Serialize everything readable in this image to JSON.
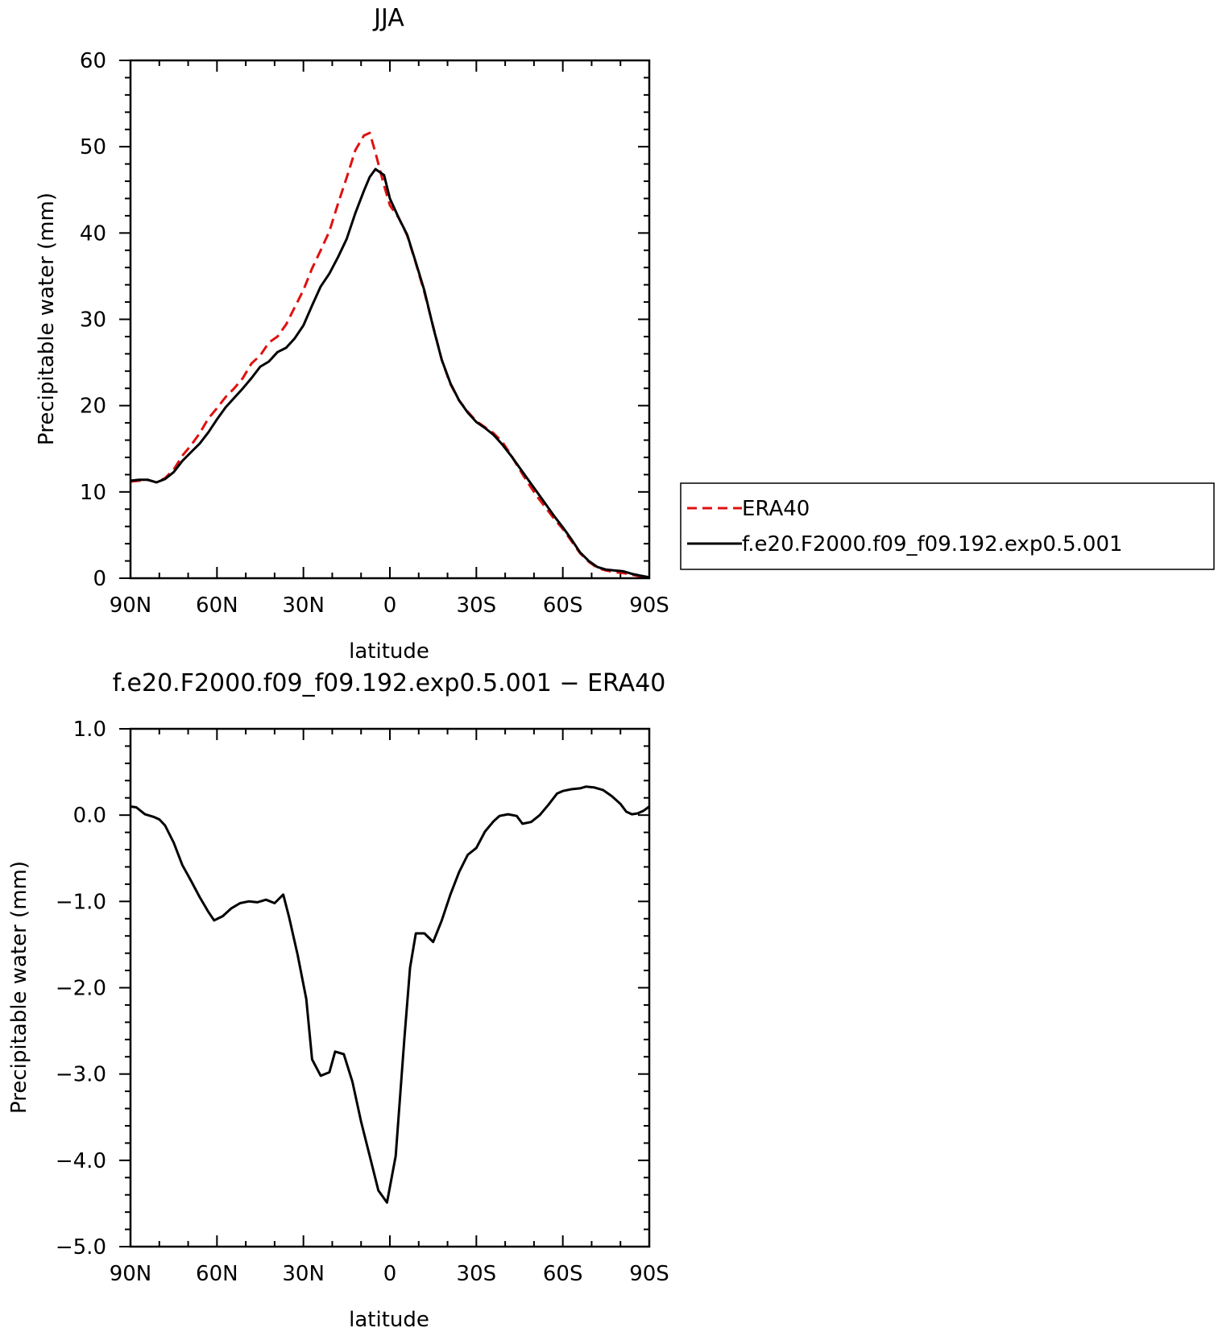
{
  "chart_data": [
    {
      "type": "line",
      "title": "JJA",
      "xlabel": "latitude",
      "ylabel": "Precipitable water (mm)",
      "xlim": [
        90,
        -90
      ],
      "ylim": [
        0,
        60
      ],
      "x_ticks": [
        {
          "value": 90,
          "label": "90N"
        },
        {
          "value": 60,
          "label": "60N"
        },
        {
          "value": 30,
          "label": "30N"
        },
        {
          "value": 0,
          "label": "0"
        },
        {
          "value": -30,
          "label": "30S"
        },
        {
          "value": -60,
          "label": "60S"
        },
        {
          "value": -90,
          "label": "90S"
        }
      ],
      "y_ticks": [
        {
          "value": 0,
          "label": "0"
        },
        {
          "value": 10,
          "label": "10"
        },
        {
          "value": 20,
          "label": "20"
        },
        {
          "value": 30,
          "label": "30"
        },
        {
          "value": 40,
          "label": "40"
        },
        {
          "value": 50,
          "label": "50"
        },
        {
          "value": 60,
          "label": "60"
        }
      ],
      "legend": "right",
      "series": [
        {
          "name": "ERA40",
          "color": "#e01010",
          "dash": "dashed",
          "points": [
            [
              90,
              11.2
            ],
            [
              87,
              11.3
            ],
            [
              84,
              11.4
            ],
            [
              81,
              11.1
            ],
            [
              78,
              11.6
            ],
            [
              75,
              12.6
            ],
            [
              72,
              14.2
            ],
            [
              69,
              15.4
            ],
            [
              66,
              16.8
            ],
            [
              63,
              18.5
            ],
            [
              60,
              19.7
            ],
            [
              57,
              21
            ],
            [
              54,
              22
            ],
            [
              51,
              23.2
            ],
            [
              48,
              24.9
            ],
            [
              45,
              25.8
            ],
            [
              42,
              27.3
            ],
            [
              39,
              28
            ],
            [
              36,
              29.4
            ],
            [
              33,
              31.4
            ],
            [
              30,
              33.4
            ],
            [
              27,
              35.9
            ],
            [
              24,
              38
            ],
            [
              21,
              40.2
            ],
            [
              18,
              43.4
            ],
            [
              15,
              46.4
            ],
            [
              12,
              49.6
            ],
            [
              9,
              51.3
            ],
            [
              7,
              51.6
            ],
            [
              5,
              49.3
            ],
            [
              2,
              45.5
            ],
            [
              0,
              43.2
            ],
            [
              -3,
              41.8
            ],
            [
              -6,
              39.7
            ],
            [
              -9,
              36.5
            ],
            [
              -12,
              33.1
            ],
            [
              -15,
              29.2
            ],
            [
              -18,
              25.3
            ],
            [
              -21,
              22.5
            ],
            [
              -24,
              20.6
            ],
            [
              -27,
              19.3
            ],
            [
              -30,
              18.2
            ],
            [
              -33,
              17.5
            ],
            [
              -36,
              16.8
            ],
            [
              -39,
              15.8
            ],
            [
              -42,
              14.3
            ],
            [
              -45,
              12.6
            ],
            [
              -48,
              11
            ],
            [
              -51,
              9.5
            ],
            [
              -54,
              8.2
            ],
            [
              -57,
              6.9
            ],
            [
              -60,
              5.7
            ],
            [
              -63,
              4.3
            ],
            [
              -66,
              2.9
            ],
            [
              -69,
              1.9
            ],
            [
              -72,
              1.2
            ],
            [
              -75,
              0.9
            ],
            [
              -78,
              0.7
            ],
            [
              -81,
              0.6
            ],
            [
              -84,
              0.4
            ],
            [
              -87,
              0.2
            ],
            [
              -90,
              0.1
            ]
          ]
        },
        {
          "name": "f.e20.F2000.f09_f09.192.exp0.5.001",
          "color": "#000000",
          "dash": "solid",
          "points": [
            [
              90,
              11.3
            ],
            [
              87,
              11.4
            ],
            [
              84,
              11.4
            ],
            [
              81,
              11.1
            ],
            [
              78,
              11.5
            ],
            [
              75,
              12.3
            ],
            [
              72,
              13.6
            ],
            [
              69,
              14.6
            ],
            [
              66,
              15.6
            ],
            [
              63,
              16.9
            ],
            [
              60,
              18.4
            ],
            [
              57,
              19.8
            ],
            [
              54,
              20.9
            ],
            [
              51,
              22
            ],
            [
              48,
              23.2
            ],
            [
              45,
              24.5
            ],
            [
              42,
              25.1
            ],
            [
              39,
              26.2
            ],
            [
              36,
              26.7
            ],
            [
              33,
              27.8
            ],
            [
              30,
              29.3
            ],
            [
              27,
              31.6
            ],
            [
              24,
              33.8
            ],
            [
              21,
              35.3
            ],
            [
              18,
              37.2
            ],
            [
              15,
              39.3
            ],
            [
              12,
              42.3
            ],
            [
              9,
              44.9
            ],
            [
              7,
              46.5
            ],
            [
              5,
              47.4
            ],
            [
              2,
              46.7
            ],
            [
              0,
              44
            ],
            [
              -3,
              41.8
            ],
            [
              -6,
              39.8
            ],
            [
              -9,
              36.6
            ],
            [
              -12,
              33.3
            ],
            [
              -15,
              29.1
            ],
            [
              -18,
              25.3
            ],
            [
              -21,
              22.6
            ],
            [
              -24,
              20.6
            ],
            [
              -27,
              19.2
            ],
            [
              -30,
              18.1
            ],
            [
              -33,
              17.4
            ],
            [
              -36,
              16.6
            ],
            [
              -39,
              15.5
            ],
            [
              -42,
              14.2
            ],
            [
              -45,
              12.8
            ],
            [
              -48,
              11.4
            ],
            [
              -51,
              10
            ],
            [
              -54,
              8.6
            ],
            [
              -57,
              7.2
            ],
            [
              -60,
              5.9
            ],
            [
              -63,
              4.5
            ],
            [
              -66,
              3
            ],
            [
              -69,
              2
            ],
            [
              -72,
              1.3
            ],
            [
              -75,
              1
            ],
            [
              -78,
              0.9
            ],
            [
              -81,
              0.8
            ],
            [
              -84,
              0.5
            ],
            [
              -87,
              0.3
            ],
            [
              -90,
              0.1
            ]
          ]
        }
      ]
    },
    {
      "type": "line",
      "title": "f.e20.F2000.f09_f09.192.exp0.5.001 − ERA40",
      "xlabel": "latitude",
      "ylabel": "Precipitable water (mm)",
      "xlim": [
        90,
        -90
      ],
      "ylim": [
        -5.0,
        1.0
      ],
      "x_ticks": [
        {
          "value": 90,
          "label": "90N"
        },
        {
          "value": 60,
          "label": "60N"
        },
        {
          "value": 30,
          "label": "30N"
        },
        {
          "value": 0,
          "label": "0"
        },
        {
          "value": -30,
          "label": "30S"
        },
        {
          "value": -60,
          "label": "60S"
        },
        {
          "value": -90,
          "label": "90S"
        }
      ],
      "y_ticks": [
        {
          "value": 1.0,
          "label": "1.0"
        },
        {
          "value": 0.0,
          "label": "0.0"
        },
        {
          "value": -1.0,
          "label": "−1.0"
        },
        {
          "value": -2.0,
          "label": "−2.0"
        },
        {
          "value": -3.0,
          "label": "−3.0"
        },
        {
          "value": -4.0,
          "label": "−4.0"
        },
        {
          "value": -5.0,
          "label": "−5.0"
        }
      ],
      "series": [
        {
          "color": "#000000",
          "dash": "solid",
          "points": [
            [
              90,
              0.1
            ],
            [
              88,
              0.09
            ],
            [
              85,
              0.01
            ],
            [
              82,
              -0.02
            ],
            [
              80,
              -0.05
            ],
            [
              78,
              -0.12
            ],
            [
              75,
              -0.32
            ],
            [
              72,
              -0.58
            ],
            [
              69,
              -0.76
            ],
            [
              66,
              -0.95
            ],
            [
              63,
              -1.12
            ],
            [
              61,
              -1.22
            ],
            [
              58,
              -1.17
            ],
            [
              55,
              -1.08
            ],
            [
              52,
              -1.02
            ],
            [
              49,
              -1
            ],
            [
              46,
              -1.01
            ],
            [
              43,
              -0.98
            ],
            [
              40,
              -1.02
            ],
            [
              37,
              -0.92
            ],
            [
              35,
              -1.18
            ],
            [
              32,
              -1.62
            ],
            [
              29,
              -2.13
            ],
            [
              27,
              -2.83
            ],
            [
              24,
              -3.02
            ],
            [
              21,
              -2.98
            ],
            [
              19,
              -2.74
            ],
            [
              16,
              -2.77
            ],
            [
              13,
              -3.09
            ],
            [
              10,
              -3.55
            ],
            [
              7,
              -3.95
            ],
            [
              4,
              -4.35
            ],
            [
              1,
              -4.49
            ],
            [
              -2,
              -3.95
            ],
            [
              -5,
              -2.6
            ],
            [
              -7,
              -1.77
            ],
            [
              -9,
              -1.37
            ],
            [
              -12,
              -1.37
            ],
            [
              -15,
              -1.47
            ],
            [
              -18,
              -1.22
            ],
            [
              -21,
              -0.92
            ],
            [
              -24,
              -0.66
            ],
            [
              -27,
              -0.46
            ],
            [
              -30,
              -0.38
            ],
            [
              -33,
              -0.19
            ],
            [
              -36,
              -0.07
            ],
            [
              -38,
              -0.01
            ],
            [
              -41,
              0.01
            ],
            [
              -44,
              -0.01
            ],
            [
              -46,
              -0.1
            ],
            [
              -49,
              -0.08
            ],
            [
              -52,
              0
            ],
            [
              -55,
              0.12
            ],
            [
              -58,
              0.25
            ],
            [
              -60,
              0.28
            ],
            [
              -63,
              0.3
            ],
            [
              -66,
              0.31
            ],
            [
              -68,
              0.33
            ],
            [
              -71,
              0.32
            ],
            [
              -74,
              0.29
            ],
            [
              -77,
              0.22
            ],
            [
              -80,
              0.13
            ],
            [
              -82,
              0.04
            ],
            [
              -84,
              0.01
            ],
            [
              -86,
              0.02
            ],
            [
              -88,
              0.05
            ],
            [
              -90,
              0.1
            ]
          ]
        }
      ]
    }
  ]
}
